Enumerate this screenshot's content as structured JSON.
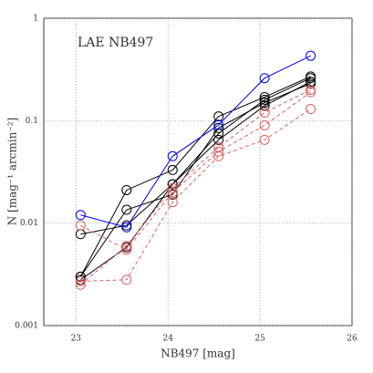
{
  "chart_data": {
    "type": "line",
    "annotation": "LAE NB497",
    "xlabel": "NB497 [mag]",
    "ylabel": "N [mag⁻¹ arcmin⁻²]",
    "x": [
      23.05,
      23.55,
      24.05,
      24.55,
      25.05,
      25.55
    ],
    "series": [
      {
        "color": "#000000",
        "linestyle": "solid",
        "values": [
          0.003,
          0.021,
          0.033,
          0.11,
          0.17,
          0.27
        ]
      },
      {
        "color": "#000000",
        "linestyle": "solid",
        "values": [
          0.0078,
          0.0095,
          0.024,
          0.075,
          0.16,
          0.26
        ]
      },
      {
        "color": "#000000",
        "linestyle": "solid",
        "values": [
          0.0028,
          0.0058,
          0.024,
          0.065,
          0.14,
          0.24
        ]
      },
      {
        "color": "#000000",
        "linestyle": "solid",
        "values": [
          0.003,
          0.0135,
          0.019,
          0.085,
          0.15,
          0.23
        ]
      },
      {
        "color": "#e06060",
        "linestyle": "dashed",
        "values": [
          0.0027,
          0.0028,
          0.016,
          0.045,
          0.065,
          0.13
        ]
      },
      {
        "color": "#e06060",
        "linestyle": "dashed",
        "values": [
          0.0095,
          0.0055,
          0.02,
          0.05,
          0.09,
          0.19
        ]
      },
      {
        "color": "#e06060",
        "linestyle": "dashed",
        "values": [
          0.0025,
          0.006,
          0.022,
          0.055,
          0.12,
          0.2
        ]
      },
      {
        "color": "#0000ee",
        "linestyle": "solid",
        "values": [
          0.012,
          0.0091,
          0.045,
          0.091,
          0.26,
          0.43
        ]
      }
    ],
    "xlim": [
      22.65,
      26
    ],
    "xticks": [
      23,
      24,
      25,
      26
    ],
    "ylim": [
      0.001,
      1
    ],
    "yticks": [
      0.001,
      0.01,
      0.1,
      1
    ],
    "log_y": true,
    "grid": true
  }
}
